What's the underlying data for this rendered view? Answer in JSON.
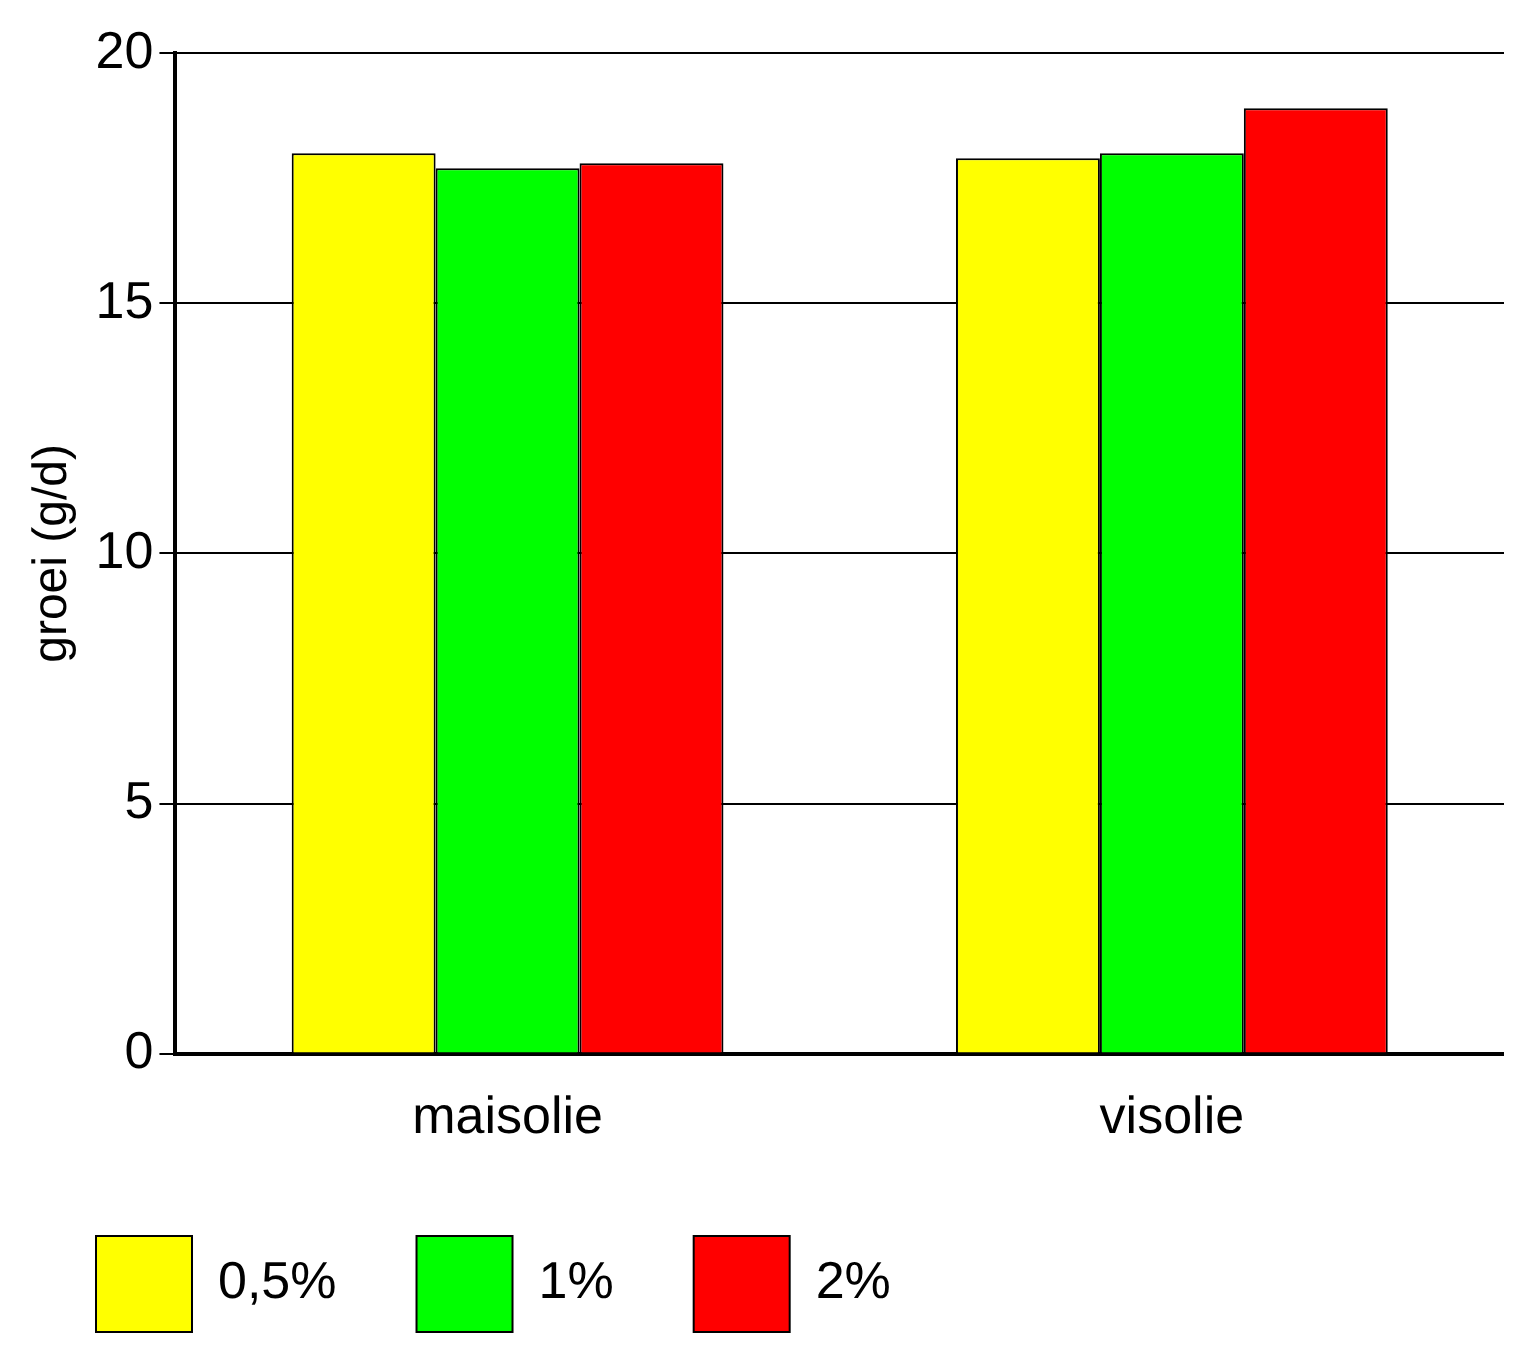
{
  "chart_data": {
    "type": "bar",
    "ylabel": "groei (g/d)",
    "categories": [
      "maisolie",
      "visolie"
    ],
    "series": [
      {
        "name": "0,5%",
        "color": "#ffff00",
        "values": [
          18.0,
          17.9
        ]
      },
      {
        "name": "1%",
        "color": "#00ff00",
        "values": [
          17.7,
          18.0
        ]
      },
      {
        "name": "2%",
        "color": "#ff0000",
        "values": [
          17.8,
          18.9
        ]
      }
    ],
    "ylim": [
      0,
      20
    ],
    "yticks": [
      0,
      5,
      10,
      15,
      20
    ],
    "grid": "y",
    "legend": "bottom"
  }
}
